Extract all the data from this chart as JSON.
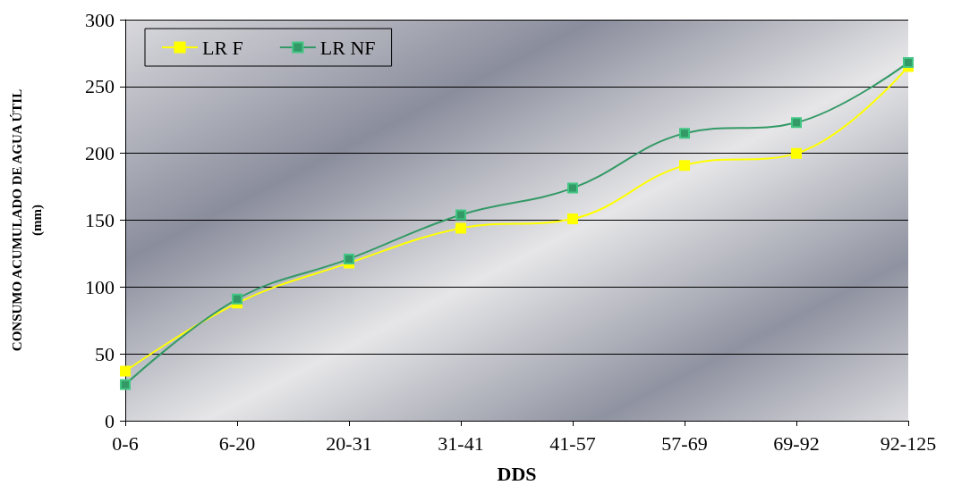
{
  "chart_data": {
    "type": "line",
    "xlabel": "DDS",
    "ylabel": "CONSUMO ACUMULADO DE AGUA ÚTIL\n(mm)",
    "categories": [
      "0-6",
      "6-20",
      "20-31",
      "31-41",
      "41-57",
      "57-69",
      "69-92",
      "92-125"
    ],
    "series": [
      {
        "name": "LR F",
        "color": "#ffff00",
        "values": [
          37,
          88,
          118,
          144,
          151,
          191,
          200,
          265
        ]
      },
      {
        "name": "LR NF",
        "color": "#339966",
        "values": [
          27,
          91,
          121,
          154,
          174,
          215,
          223,
          268
        ]
      }
    ],
    "ylim": [
      0,
      300
    ],
    "yticks": [
      0,
      50,
      100,
      150,
      200,
      250,
      300
    ],
    "grid": "y",
    "legend": "top left",
    "marker": "square",
    "line_style": "solid"
  }
}
